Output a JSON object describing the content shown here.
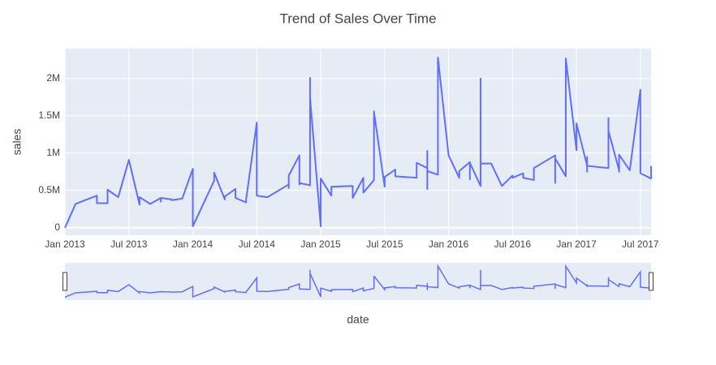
{
  "chart_data": {
    "type": "line",
    "title": "Trend of Sales Over Time",
    "x_label": "date",
    "y_label": "sales",
    "x": [
      "2013-01",
      "2013-02",
      "2013-04",
      "2013-04",
      "2013-05",
      "2013-05",
      "2013-06",
      "2013-07",
      "2013-08",
      "2013-08",
      "2013-09",
      "2013-10",
      "2013-10",
      "2013-10",
      "2013-11",
      "2013-11",
      "2013-12",
      "2014-01",
      "2014-01",
      "2014-01",
      "2014-01",
      "2014-03",
      "2014-03",
      "2014-04",
      "2014-04",
      "2014-05",
      "2014-05",
      "2014-06",
      "2014-06",
      "2014-07",
      "2014-07",
      "2014-07",
      "2014-07",
      "2014-07",
      "2014-07",
      "2014-07",
      "2014-07",
      "2014-08",
      "2014-10",
      "2014-10",
      "2014-10",
      "2014-11",
      "2014-11",
      "2014-11",
      "2014-12",
      "2014-12",
      "2014-12",
      "2014-12",
      "2014-12",
      "2014-12",
      "2014-12",
      "2015-01",
      "2015-01",
      "2015-02",
      "2015-02",
      "2015-04",
      "2015-04",
      "2015-04",
      "2015-05",
      "2015-05",
      "2015-06",
      "2015-06",
      "2015-06",
      "2015-07",
      "2015-07",
      "2015-08",
      "2015-08",
      "2015-10",
      "2015-10",
      "2015-10",
      "2015-11",
      "2015-11",
      "2015-11",
      "2015-11",
      "2015-11",
      "2015-11",
      "2015-11",
      "2015-12",
      "2015-12",
      "2015-12",
      "2016-01",
      "2016-02",
      "2016-02",
      "2016-03",
      "2016-03",
      "2016-03",
      "2016-04",
      "2016-04",
      "2016-04",
      "2016-04",
      "2016-04",
      "2016-04",
      "2016-04",
      "2016-04",
      "2016-04",
      "2016-04",
      "2016-04",
      "2016-04",
      "2016-04",
      "2016-04",
      "2016-05",
      "2016-06",
      "2016-07",
      "2016-07",
      "2016-07",
      "2016-08",
      "2016-08",
      "2016-09",
      "2016-09",
      "2016-11",
      "2016-11",
      "2016-11",
      "2016-11",
      "2016-11",
      "2016-11",
      "2016-11",
      "2016-12",
      "2016-12",
      "2016-12",
      "2017-01",
      "2017-01",
      "2017-02",
      "2017-02",
      "2017-02",
      "2017-02",
      "2017-04",
      "2017-04",
      "2017-04",
      "2017-04",
      "2017-04",
      "2017-05",
      "2017-05",
      "2017-05",
      "2017-06",
      "2017-07",
      "2017-07",
      "2017-08",
      "2017-08",
      "2017-08"
    ],
    "series": [
      {
        "name": "sales",
        "color": "#636efa",
        "values": [
          0,
          320000,
          430000,
          330000,
          330000,
          510000,
          410000,
          910000,
          310000,
          410000,
          320000,
          400000,
          350000,
          400000,
          380000,
          370000,
          390000,
          790000,
          480000,
          500000,
          20000,
          630000,
          740000,
          380000,
          420000,
          520000,
          400000,
          340000,
          380000,
          1410000,
          450000,
          1160000,
          580000,
          580000,
          500000,
          580000,
          430000,
          410000,
          580000,
          530000,
          700000,
          970000,
          580000,
          600000,
          570000,
          820000,
          630000,
          800000,
          2010000,
          970000,
          1740000,
          20000,
          660000,
          430000,
          550000,
          560000,
          440000,
          400000,
          670000,
          470000,
          640000,
          1560000,
          1550000,
          550000,
          680000,
          780000,
          690000,
          670000,
          720000,
          870000,
          800000,
          1030000,
          640000,
          690000,
          520000,
          570000,
          760000,
          710000,
          1070000,
          2280000,
          970000,
          670000,
          760000,
          880000,
          650000,
          870000,
          560000,
          1340000,
          560000,
          2000000,
          600000,
          970000,
          670000,
          790000,
          680000,
          1200000,
          700000,
          770000,
          620000,
          860000,
          860000,
          560000,
          700000,
          700000,
          670000,
          730000,
          670000,
          640000,
          800000,
          970000,
          780000,
          850000,
          600000,
          720000,
          740000,
          930000,
          690000,
          800000,
          2270000,
          1040000,
          1400000,
          830000,
          750000,
          950000,
          830000,
          800000,
          1470000,
          810000,
          980000,
          1300000,
          770000,
          750000,
          980000,
          770000,
          1850000,
          730000,
          660000,
          820000,
          680000
        ]
      }
    ],
    "xlim": [
      "2013-01",
      "2017-08"
    ],
    "xticks": [
      {
        "value": "2013-01",
        "label": "Jan 2013"
      },
      {
        "value": "2013-07",
        "label": "Jul 2013"
      },
      {
        "value": "2014-01",
        "label": "Jan 2014"
      },
      {
        "value": "2014-07",
        "label": "Jul 2014"
      },
      {
        "value": "2015-01",
        "label": "Jan 2015"
      },
      {
        "value": "2015-07",
        "label": "Jul 2015"
      },
      {
        "value": "2016-01",
        "label": "Jan 2016"
      },
      {
        "value": "2016-07",
        "label": "Jul 2016"
      },
      {
        "value": "2017-01",
        "label": "Jan 2017"
      },
      {
        "value": "2017-07",
        "label": "Jul 2017"
      }
    ],
    "ylim": [
      -100000,
      2400000
    ],
    "yticks": [
      0,
      {
        "value": 500000,
        "label": "0.5M"
      },
      {
        "value": 1000000,
        "label": "1M"
      },
      {
        "value": 1500000,
        "label": "1.5M"
      },
      {
        "value": 2000000,
        "label": "2M"
      }
    ],
    "grid": true,
    "range_slider": true
  }
}
